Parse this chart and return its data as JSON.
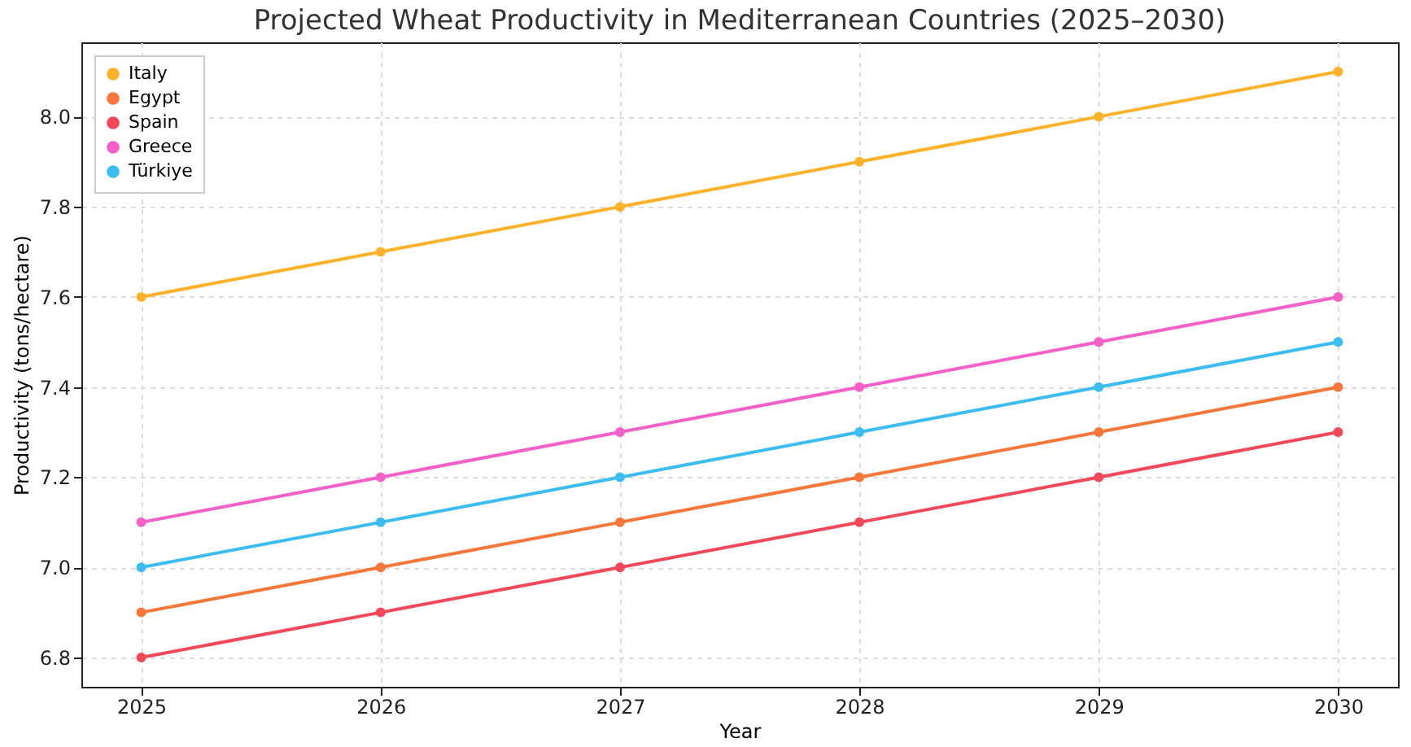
{
  "chart_data": {
    "type": "line",
    "title": "Projected Wheat Productivity in Mediterranean Countries (2025–2030)",
    "xlabel": "Year",
    "ylabel": "Productivity (tons/hectare)",
    "x": [
      2025,
      2026,
      2027,
      2028,
      2029,
      2030
    ],
    "series": [
      {
        "name": "Italy",
        "color": "#fdb22a",
        "values": [
          7.6,
          7.7,
          7.8,
          7.9,
          8.0,
          8.1
        ]
      },
      {
        "name": "Egypt",
        "color": "#f7773a",
        "values": [
          6.9,
          7.0,
          7.1,
          7.2,
          7.3,
          7.4
        ]
      },
      {
        "name": "Spain",
        "color": "#f2485a",
        "values": [
          6.8,
          6.9,
          7.0,
          7.1,
          7.2,
          7.3
        ]
      },
      {
        "name": "Greece",
        "color": "#f55fc8",
        "values": [
          7.1,
          7.2,
          7.3,
          7.4,
          7.5,
          7.6
        ]
      },
      {
        "name": "Türkiye",
        "color": "#3bbdf2",
        "values": [
          7.0,
          7.1,
          7.2,
          7.3,
          7.4,
          7.5
        ]
      }
    ],
    "xlim": [
      2024.75,
      2030.25
    ],
    "xticks": [
      2025,
      2026,
      2027,
      2028,
      2029,
      2030
    ],
    "ylim": [
      6.735,
      8.165
    ],
    "yticks": [
      6.8,
      {
        "value": 7,
        "label": "7.0"
      },
      7.2,
      7.4,
      7.6,
      7.8,
      {
        "value": 8,
        "label": "8.0"
      }
    ],
    "grid": true,
    "legend": "top left",
    "marker": "circle",
    "line_style": "solid"
  }
}
